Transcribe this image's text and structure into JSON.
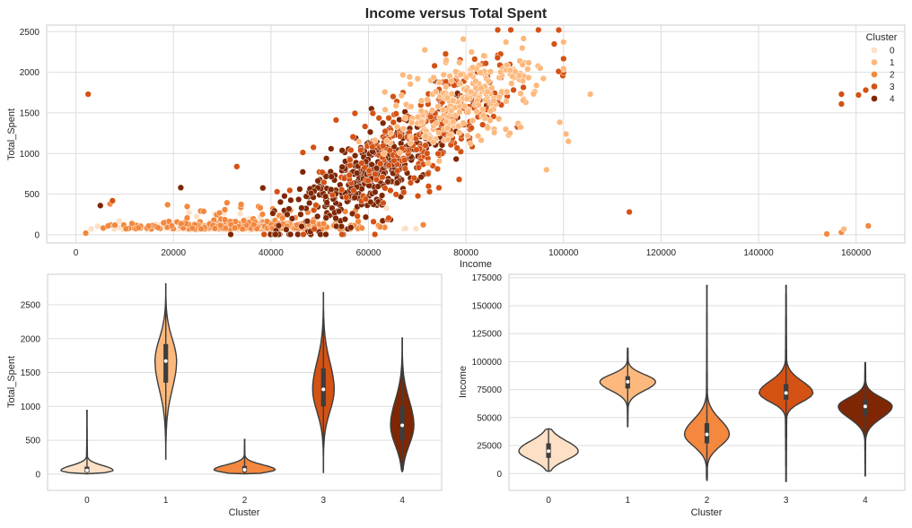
{
  "title": "Income versus Total Spent",
  "palette": [
    "#fde0c5",
    "#fdb97d",
    "#f3883e",
    "#d45214",
    "#7f2704"
  ],
  "chart_data": [
    {
      "type": "scatter",
      "xlabel": "Income",
      "ylabel": "Total_Spent",
      "xlim": [
        -6000,
        170000
      ],
      "ylim": [
        -100,
        2580
      ],
      "xticks": [
        0,
        20000,
        40000,
        60000,
        80000,
        100000,
        120000,
        140000,
        160000
      ],
      "yticks": [
        0,
        500,
        1000,
        1500,
        2000,
        2500
      ],
      "grid": true,
      "legend": {
        "title": "Cluster",
        "placement": "top-right",
        "entries": [
          "0",
          "1",
          "2",
          "3",
          "4"
        ]
      },
      "clusters": [
        {
          "name": "0",
          "center": [
            34000,
            60
          ],
          "spread": [
            12000,
            45
          ],
          "count": 220
        },
        {
          "name": "1",
          "center": [
            80000,
            1650
          ],
          "spread": [
            8000,
            330
          ],
          "count": 260
        },
        {
          "name": "2",
          "center": [
            36000,
            70
          ],
          "spread": [
            11000,
            50
          ],
          "count": 360
        },
        {
          "name": "3",
          "center": [
            72000,
            1250
          ],
          "spread": [
            11000,
            420
          ],
          "count": 280
        },
        {
          "name": "4",
          "center": [
            60000,
            750
          ],
          "spread": [
            9000,
            300
          ],
          "count": 400
        }
      ],
      "outliers": [
        [
          2500,
          1730,
          3
        ],
        [
          157000,
          1730,
          3
        ],
        [
          157000,
          1610,
          3
        ],
        [
          160500,
          1720,
          3
        ],
        [
          162000,
          1780,
          3
        ],
        [
          113500,
          280,
          3
        ],
        [
          105500,
          1730,
          1
        ],
        [
          100500,
          1240,
          1
        ],
        [
          101000,
          1150,
          1
        ],
        [
          96500,
          800,
          1
        ],
        [
          154000,
          10,
          2
        ],
        [
          157000,
          30,
          2
        ],
        [
          157500,
          70,
          1
        ],
        [
          162500,
          110,
          2
        ],
        [
          99000,
          2010,
          3
        ],
        [
          33000,
          840,
          3
        ],
        [
          21500,
          580,
          4
        ],
        [
          5000,
          360,
          4
        ],
        [
          7500,
          420,
          3
        ],
        [
          2000,
          20,
          2
        ],
        [
          7000,
          380,
          2
        ],
        [
          8000,
          120,
          2
        ]
      ]
    },
    {
      "type": "violin",
      "xlabel": "Cluster",
      "ylabel": "Total_Spent",
      "categories": [
        "0",
        "1",
        "2",
        "3",
        "4"
      ],
      "ylim": [
        -240,
        2950
      ],
      "yticks": [
        0,
        500,
        1000,
        1500,
        2000,
        2500
      ],
      "grid": true,
      "violins": [
        {
          "category": "0",
          "min": 5,
          "q1": 25,
          "median": 55,
          "q3": 110,
          "max": 940
        },
        {
          "category": "1",
          "min": 220,
          "q1": 1350,
          "median": 1670,
          "q3": 1920,
          "max": 2810
        },
        {
          "category": "2",
          "min": 5,
          "q1": 30,
          "median": 65,
          "q3": 120,
          "max": 510
        },
        {
          "category": "3",
          "min": 25,
          "q1": 1000,
          "median": 1250,
          "q3": 1560,
          "max": 2680
        },
        {
          "category": "4",
          "min": 35,
          "q1": 500,
          "median": 720,
          "q3": 1000,
          "max": 2010
        }
      ]
    },
    {
      "type": "violin",
      "xlabel": "Cluster",
      "ylabel": "Income",
      "categories": [
        "0",
        "1",
        "2",
        "3",
        "4"
      ],
      "ylim": [
        -15000,
        178000
      ],
      "yticks": [
        0,
        25000,
        50000,
        75000,
        100000,
        125000,
        150000,
        175000
      ],
      "grid": true,
      "violins": [
        {
          "category": "0",
          "min": 2000,
          "q1": 14000,
          "median": 20000,
          "q3": 27000,
          "max": 40000
        },
        {
          "category": "1",
          "min": 42000,
          "q1": 76000,
          "median": 82000,
          "q3": 87000,
          "max": 112000
        },
        {
          "category": "2",
          "min": -6000,
          "q1": 27000,
          "median": 35000,
          "q3": 45000,
          "max": 168000
        },
        {
          "category": "3",
          "min": -7000,
          "q1": 66000,
          "median": 72000,
          "q3": 80000,
          "max": 168000
        },
        {
          "category": "4",
          "min": -2000,
          "q1": 52000,
          "median": 60000,
          "q3": 66000,
          "max": 99000
        }
      ]
    }
  ]
}
